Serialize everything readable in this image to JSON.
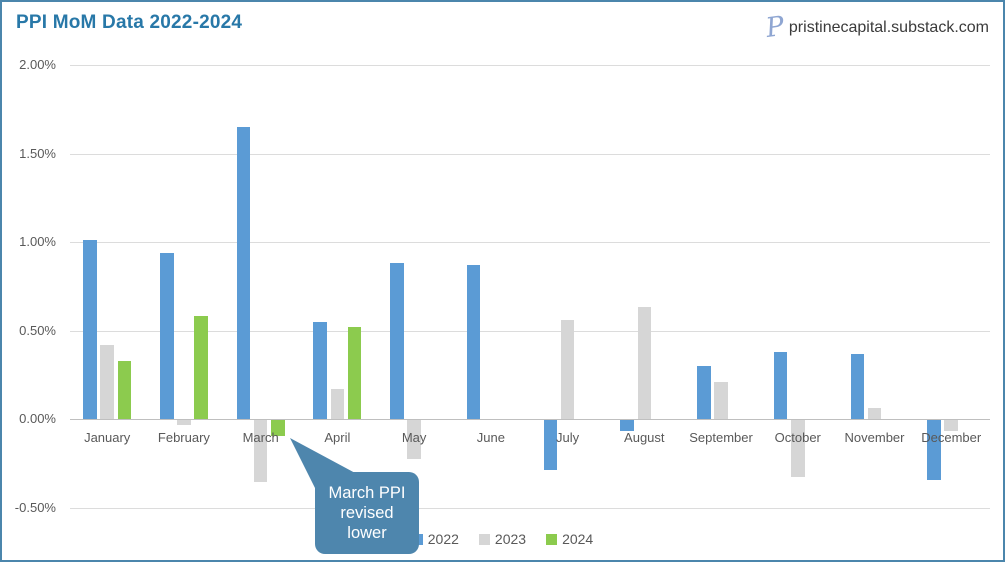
{
  "header": {
    "site": "pristinecapital.substack.com",
    "logo_icon": "script-p-logo",
    "logo_glyph": "P"
  },
  "chart_data": {
    "type": "bar",
    "title": "PPI MoM Data 2022-2024",
    "categories": [
      "January",
      "February",
      "March",
      "April",
      "May",
      "June",
      "July",
      "August",
      "September",
      "October",
      "November",
      "December"
    ],
    "series": [
      {
        "name": "2022",
        "color": "#5b9bd5",
        "values": [
          1.01,
          0.94,
          1.65,
          0.55,
          0.88,
          0.87,
          -0.28,
          -0.06,
          0.3,
          0.38,
          0.37,
          -0.34
        ]
      },
      {
        "name": "2023",
        "color": "#d6d6d6",
        "values": [
          0.42,
          -0.03,
          -0.35,
          0.17,
          -0.22,
          0.0,
          0.56,
          0.63,
          0.21,
          -0.32,
          0.06,
          -0.06
        ]
      },
      {
        "name": "2024",
        "color": "#8ccb4e",
        "values": [
          0.33,
          0.58,
          -0.09,
          0.52,
          null,
          null,
          null,
          null,
          null,
          null,
          null,
          null
        ]
      }
    ],
    "xlabel": "",
    "ylabel": "",
    "ylim": [
      -0.5,
      2.0
    ],
    "ytick_values": [
      2.0,
      1.5,
      1.0,
      0.5,
      0.0,
      -0.5
    ],
    "ytick_labels": [
      "2.00%",
      "1.50%",
      "1.00%",
      "0.50%",
      "0.00%",
      "-0.50%"
    ],
    "grid": true,
    "legend_position": "bottom"
  },
  "annotation": {
    "text": "March PPI revised lower",
    "fill_color": "#4e86ad",
    "text_color": "#ffffff"
  },
  "colors": {
    "frame_border": "#4b86ac",
    "title_text": "#2878a8",
    "axis_text": "#595959",
    "gridline": "#dcdcdc",
    "zero_line": "#bfbfbf"
  }
}
